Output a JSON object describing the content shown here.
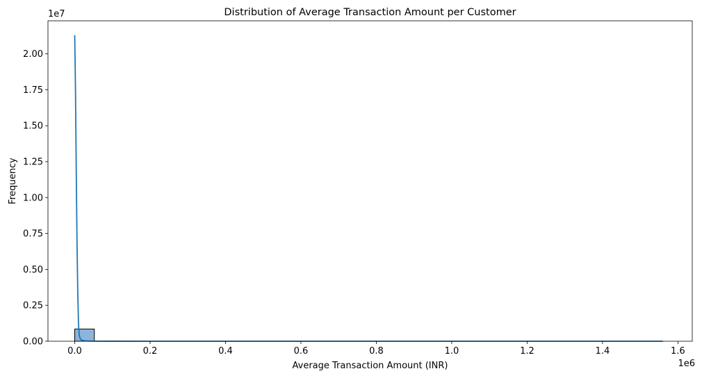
{
  "chart_data": {
    "type": "histogram",
    "title": "Distribution of Average Transaction Amount per Customer",
    "xlabel": "Average Transaction Amount (INR)",
    "ylabel": "Frequency",
    "x_offset_label": "1e6",
    "y_offset_label": "1e7",
    "xlim": [
      -71000,
      1638000
    ],
    "ylim": [
      0,
      22300000
    ],
    "x_ticks": [
      0,
      200000,
      400000,
      600000,
      800000,
      1000000,
      1200000,
      1400000,
      1600000
    ],
    "x_tick_labels": [
      "0.0",
      "0.2",
      "0.4",
      "0.6",
      "0.8",
      "1.0",
      "1.2",
      "1.4",
      "1.6"
    ],
    "y_ticks": [
      0,
      2500000,
      5000000,
      7500000,
      10000000,
      12500000,
      15000000,
      17500000,
      20000000
    ],
    "y_tick_labels": [
      "0.00",
      "0.25",
      "0.50",
      "0.75",
      "1.00",
      "1.25",
      "1.50",
      "1.75",
      "2.00"
    ],
    "bin_width": 52000,
    "bins": [
      {
        "start": 0,
        "end": 52000,
        "count": 850000
      }
    ],
    "kde_curve": {
      "x": [
        0,
        2000,
        4000,
        6000,
        8000,
        10000,
        12000,
        15000,
        20000,
        30000,
        50000,
        100000,
        200000,
        400000,
        800000,
        1200000,
        1560000
      ],
      "y": [
        21300000,
        17500000,
        12000000,
        7000000,
        3500000,
        1200000,
        400000,
        150000,
        60000,
        20000,
        5000,
        2000,
        1000,
        500,
        200,
        100,
        50
      ]
    },
    "grid": false,
    "colors": {
      "bar_fill": "#8db5dc",
      "bar_edge": "#000000",
      "kde_line": "#1f77b4"
    }
  }
}
